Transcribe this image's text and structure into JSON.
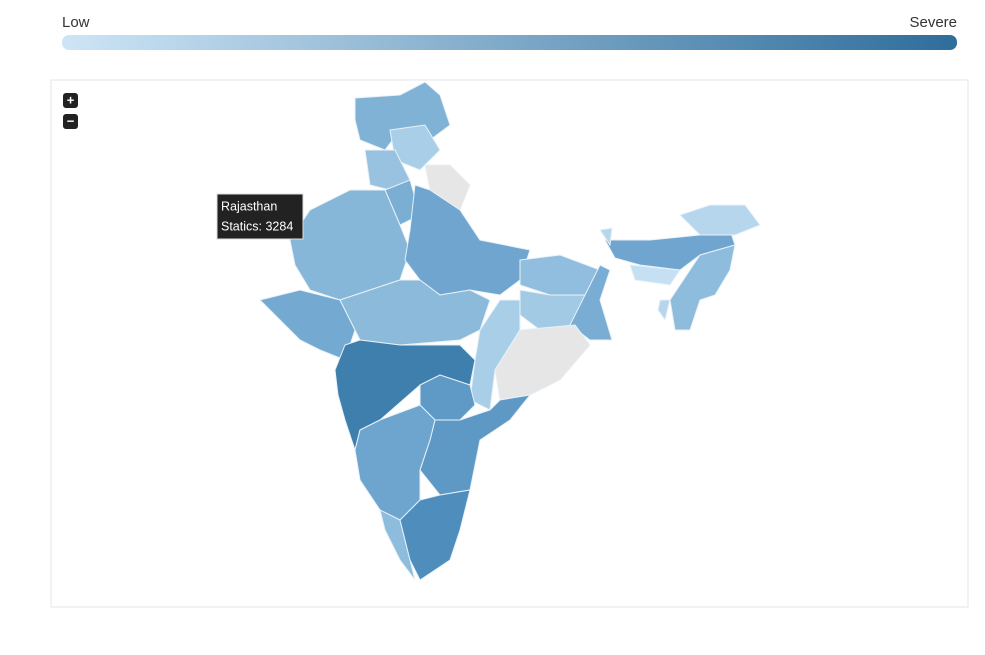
{
  "legend": {
    "low": "Low",
    "high": "Severe"
  },
  "zoom": {
    "in": "+",
    "out": "−"
  },
  "tooltip": {
    "region": "Rajasthan",
    "text": "Statics: 3284"
  }
}
